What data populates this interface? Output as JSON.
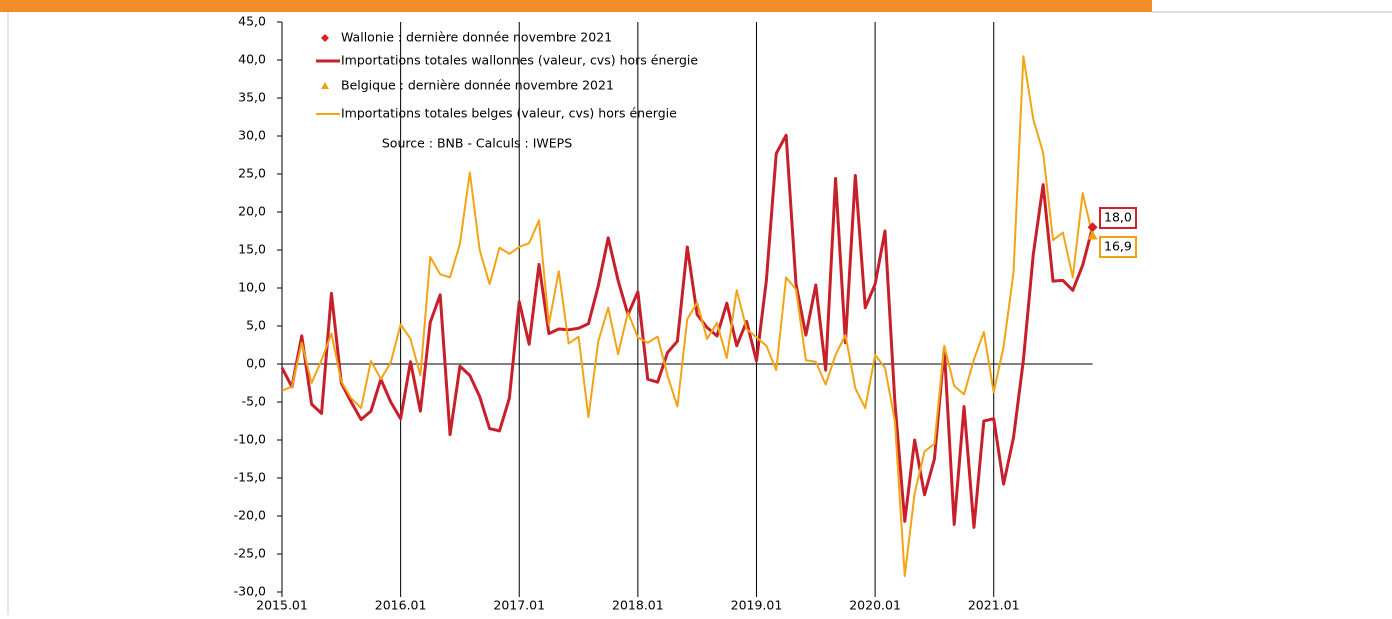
{
  "chart_data": {
    "type": "line",
    "categories": [
      "2015.01",
      null,
      null,
      null,
      null,
      null,
      null,
      null,
      null,
      null,
      null,
      null,
      "2016.01",
      null,
      null,
      null,
      null,
      null,
      null,
      null,
      null,
      null,
      null,
      null,
      "2017.01",
      null,
      null,
      null,
      null,
      null,
      null,
      null,
      null,
      null,
      null,
      null,
      "2018.01",
      null,
      null,
      null,
      null,
      null,
      null,
      null,
      null,
      null,
      null,
      null,
      "2019.01",
      null,
      null,
      null,
      null,
      null,
      null,
      null,
      null,
      null,
      null,
      null,
      "2020.01",
      null,
      null,
      null,
      null,
      null,
      null,
      null,
      null,
      null,
      null,
      null,
      "2021.01",
      null,
      null,
      null,
      null,
      null,
      null,
      null,
      null,
      null,
      null
    ],
    "series": [
      {
        "name": "Wallonie : dernière donnée novembre 2021",
        "color": "#d42027",
        "marker": "diamond",
        "values": [
          null,
          null,
          null,
          null,
          null,
          null,
          null,
          null,
          null,
          null,
          null,
          null,
          null,
          null,
          null,
          null,
          null,
          null,
          null,
          null,
          null,
          null,
          null,
          null,
          null,
          null,
          null,
          null,
          null,
          null,
          null,
          null,
          null,
          null,
          null,
          null,
          null,
          null,
          null,
          null,
          null,
          null,
          null,
          null,
          null,
          null,
          null,
          null,
          null,
          null,
          null,
          null,
          null,
          null,
          null,
          null,
          null,
          null,
          null,
          null,
          null,
          null,
          null,
          null,
          null,
          null,
          null,
          null,
          null,
          null,
          null,
          null,
          null,
          null,
          null,
          null,
          null,
          null,
          null,
          null,
          null,
          null,
          18.0
        ],
        "value_labels": [
          null,
          null,
          null,
          null,
          null,
          null,
          null,
          null,
          null,
          null,
          null,
          null,
          null,
          null,
          null,
          null,
          null,
          null,
          null,
          null,
          null,
          null,
          null,
          null,
          null,
          null,
          null,
          null,
          null,
          null,
          null,
          null,
          null,
          null,
          null,
          null,
          null,
          null,
          null,
          null,
          null,
          null,
          null,
          null,
          null,
          null,
          null,
          null,
          null,
          null,
          null,
          null,
          null,
          null,
          null,
          null,
          null,
          null,
          null,
          null,
          null,
          null,
          null,
          null,
          null,
          null,
          null,
          null,
          null,
          null,
          null,
          null,
          null,
          null,
          null,
          null,
          null,
          null,
          null,
          null,
          null,
          null,
          "18,0"
        ]
      },
      {
        "name": "Importations totales wallonnes (valeur, cvs) hors énergie",
        "color": "#c8202a",
        "width": 3,
        "values": [
          -0.5,
          -3,
          3.7,
          -5.3,
          -6.5,
          9.3,
          -2.5,
          -5,
          -7.3,
          -6.2,
          -2,
          -5,
          -7.2,
          0.3,
          -6.2,
          5.5,
          9.1,
          -9.3,
          -0.3,
          -1.5,
          -4.3,
          -8.5,
          -8.8,
          -4.5,
          8.2,
          2.6,
          13.1,
          4,
          4.6,
          4.5,
          4.7,
          5.3,
          10.3,
          16.6,
          11,
          6.5,
          9.5,
          -2,
          -2.4,
          1.5,
          3,
          15.4,
          6.5,
          4.8,
          3.7,
          8,
          2.4,
          5.6,
          0.4,
          11,
          27.7,
          30.1,
          10.5,
          3.8,
          10.4,
          -0.8,
          24.4,
          2.8,
          24.8,
          7.4,
          10.5,
          17.5,
          -5,
          -20.7,
          -10,
          -17.2,
          -12.5,
          2,
          -21.1,
          -5.6,
          -21.5,
          -7.5,
          -7.2,
          -15.8,
          -9.7,
          0.5,
          14.4,
          23.6,
          10.9,
          11,
          9.7,
          13,
          18.0
        ]
      },
      {
        "name": "Belgique : dernière donnée novembre 2021",
        "color": "#f0a20e",
        "marker": "triangle",
        "values": [
          null,
          null,
          null,
          null,
          null,
          null,
          null,
          null,
          null,
          null,
          null,
          null,
          null,
          null,
          null,
          null,
          null,
          null,
          null,
          null,
          null,
          null,
          null,
          null,
          null,
          null,
          null,
          null,
          null,
          null,
          null,
          null,
          null,
          null,
          null,
          null,
          null,
          null,
          null,
          null,
          null,
          null,
          null,
          null,
          null,
          null,
          null,
          null,
          null,
          null,
          null,
          null,
          null,
          null,
          null,
          null,
          null,
          null,
          null,
          null,
          null,
          null,
          null,
          null,
          null,
          null,
          null,
          null,
          null,
          null,
          null,
          null,
          null,
          null,
          null,
          null,
          null,
          null,
          null,
          null,
          null,
          null,
          16.9
        ],
        "value_labels": [
          null,
          null,
          null,
          null,
          null,
          null,
          null,
          null,
          null,
          null,
          null,
          null,
          null,
          null,
          null,
          null,
          null,
          null,
          null,
          null,
          null,
          null,
          null,
          null,
          null,
          null,
          null,
          null,
          null,
          null,
          null,
          null,
          null,
          null,
          null,
          null,
          null,
          null,
          null,
          null,
          null,
          null,
          null,
          null,
          null,
          null,
          null,
          null,
          null,
          null,
          null,
          null,
          null,
          null,
          null,
          null,
          null,
          null,
          null,
          null,
          null,
          null,
          null,
          null,
          null,
          null,
          null,
          null,
          null,
          null,
          null,
          null,
          null,
          null,
          null,
          null,
          null,
          null,
          null,
          null,
          null,
          null,
          "16,9"
        ]
      },
      {
        "name": "Importations totales belges (valeur, cvs) hors énergie",
        "color": "#f2a416",
        "width": 2,
        "values": [
          -3.5,
          -3,
          2.8,
          -2.5,
          0.5,
          4,
          -2.3,
          -4.5,
          -5.8,
          0.4,
          -2,
          0.2,
          5.2,
          3.3,
          -1.5,
          14.1,
          11.8,
          11.4,
          15.8,
          25.2,
          15,
          10.5,
          15.3,
          14.5,
          15.4,
          15.9,
          18.9,
          5.2,
          12.2,
          2.7,
          3.6,
          -7,
          3,
          7.4,
          1.3,
          6.8,
          3.5,
          2.8,
          3.6,
          -1.5,
          -5.6,
          5.9,
          8.1,
          3.3,
          5.4,
          0.8,
          9.7,
          4.6,
          3.5,
          2.4,
          -0.8,
          11.4,
          9.8,
          0.5,
          0.3,
          -2.7,
          1.2,
          3.8,
          -3.2,
          -5.8,
          1.2,
          -0.5,
          -7.5,
          -27.9,
          -17,
          -11.5,
          -10.5,
          2.4,
          -2.9,
          -4,
          0.6,
          4.2,
          -3.7,
          2.3,
          12,
          40.5,
          32.2,
          27.8,
          16.3,
          17.3,
          11.4,
          22.5,
          16.9
        ]
      }
    ],
    "source": "Source : BNB - Calculs : IWEPS",
    "ylim": [
      -30,
      45
    ],
    "yticks": [
      {
        "value": -30,
        "label": "-30,0"
      },
      {
        "value": -25,
        "label": "-25,0"
      },
      {
        "value": -20,
        "label": "-20,0"
      },
      {
        "value": -15,
        "label": "-15,0"
      },
      {
        "value": -10,
        "label": "-10,0"
      },
      {
        "value": -5,
        "label": "-5,0"
      },
      {
        "value": 0,
        "label": "0,0"
      },
      {
        "value": 5,
        "label": "5,0"
      },
      {
        "value": 10,
        "label": "10,0"
      },
      {
        "value": 15,
        "label": "15,0"
      },
      {
        "value": 20,
        "label": "20,0"
      },
      {
        "value": 25,
        "label": "25,0"
      },
      {
        "value": 30,
        "label": "30,0"
      },
      {
        "value": 35,
        "label": "35,0"
      },
      {
        "value": 40,
        "label": "40,0"
      },
      {
        "value": 45,
        "label": "45,0"
      }
    ]
  }
}
